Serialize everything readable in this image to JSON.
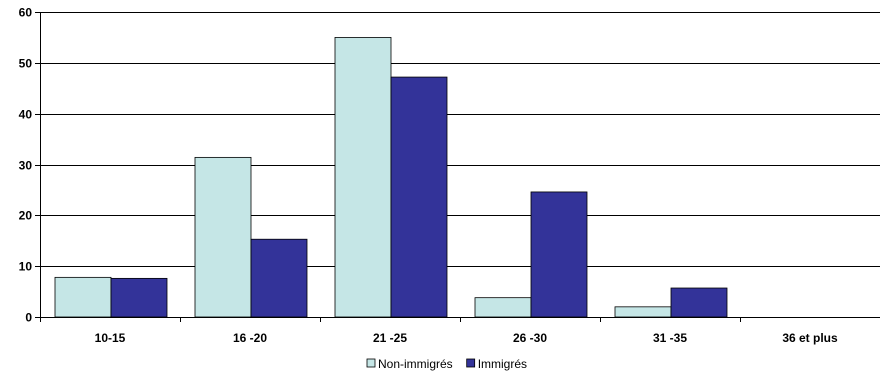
{
  "chart_data": {
    "type": "bar",
    "categories": [
      "10-15",
      "16 -20",
      "21 -25",
      "26 -30",
      "31 -35",
      "36 et plus"
    ],
    "series": [
      {
        "name": "Non-immigrés",
        "color": "#c5e6e6",
        "values": [
          7.8,
          31.4,
          55.0,
          3.8,
          2.0,
          0
        ]
      },
      {
        "name": "Immigrés",
        "color": "#333399",
        "values": [
          7.6,
          15.3,
          47.2,
          24.6,
          5.7,
          0
        ]
      }
    ],
    "ylim": [
      0,
      60
    ],
    "yticks": [
      0,
      10,
      20,
      30,
      40,
      50,
      60
    ],
    "grid": true,
    "legend_position": "bottom",
    "title": "",
    "xlabel": "",
    "ylabel": ""
  }
}
